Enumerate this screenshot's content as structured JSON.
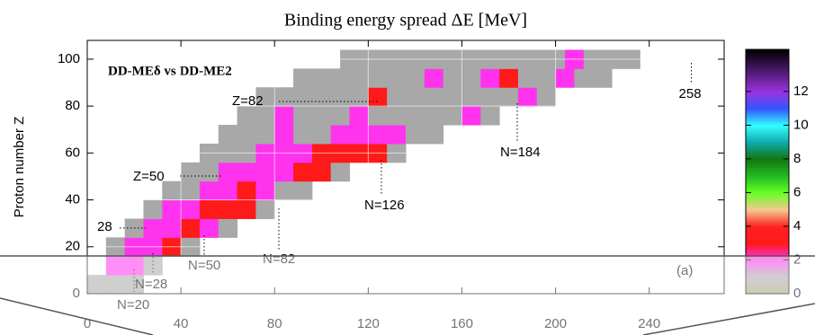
{
  "chart_data": {
    "type": "heatmap",
    "title": "Binding energy spread ΔE [MeV]",
    "y_label": "Proton number Z",
    "subtitle": "DD-MEδ vs DD-ME2",
    "panel_label": "(a)",
    "xlim": [
      0,
      272
    ],
    "xticks": [
      0,
      40,
      80,
      120,
      160,
      200,
      240
    ],
    "ylim": [
      0,
      108
    ],
    "yticks": [
      0,
      20,
      40,
      60,
      80,
      100
    ],
    "clim": [
      0,
      14.5
    ],
    "cticks": [
      0,
      2,
      4,
      6,
      8,
      10,
      12
    ],
    "colorscale": [
      {
        "value": 0,
        "color": "#a39f7a"
      },
      {
        "value": 1,
        "color": "#a8a8a8"
      },
      {
        "value": 2,
        "color": "#ff33ee"
      },
      {
        "value": 3,
        "color": "#ff1a1a"
      },
      {
        "value": 4,
        "color": "#ff2020"
      },
      {
        "value": 5,
        "color": "#f5c890"
      },
      {
        "value": 6,
        "color": "#66ff22"
      },
      {
        "value": 7,
        "color": "#22bb22"
      },
      {
        "value": 8,
        "color": "#117711"
      },
      {
        "value": 9,
        "color": "#11aaaa"
      },
      {
        "value": 10,
        "color": "#33ffff"
      },
      {
        "value": 11,
        "color": "#3355ff"
      },
      {
        "value": 12,
        "color": "#9933dd"
      },
      {
        "value": 14.5,
        "color": "#000000"
      }
    ],
    "rows": [
      {
        "Z": 4,
        "N": [
          4,
          12,
          20
        ],
        "values": [
          1,
          1,
          1
        ]
      },
      {
        "Z": 12,
        "N": [
          12,
          20,
          28
        ],
        "values": [
          2,
          2,
          1
        ]
      },
      {
        "Z": 20,
        "N": [
          12,
          20,
          28,
          36,
          44
        ],
        "values": [
          1,
          2,
          2,
          3,
          1
        ]
      },
      {
        "Z": 28,
        "N": [
          20,
          28,
          36,
          44,
          52,
          60
        ],
        "values": [
          1,
          2,
          2,
          3,
          2,
          1
        ]
      },
      {
        "Z": 36,
        "N": [
          28,
          36,
          44,
          52,
          60,
          68,
          76
        ],
        "values": [
          1,
          2,
          2,
          3,
          3,
          3,
          1
        ]
      },
      {
        "Z": 44,
        "N": [
          36,
          44,
          52,
          60,
          68,
          76,
          84,
          92
        ],
        "values": [
          1,
          1,
          2,
          2,
          3,
          2,
          1,
          1
        ]
      },
      {
        "Z": 52,
        "N": [
          44,
          52,
          60,
          68,
          76,
          84,
          92,
          100,
          108
        ],
        "values": [
          1,
          1,
          2,
          2,
          2,
          2,
          3,
          3,
          1
        ]
      },
      {
        "Z": 60,
        "N": [
          52,
          60,
          68,
          76,
          84,
          92,
          100,
          108,
          116,
          124,
          132
        ],
        "values": [
          1,
          1,
          1,
          2,
          2,
          2,
          3,
          3,
          3,
          3,
          1
        ]
      },
      {
        "Z": 68,
        "N": [
          60,
          68,
          76,
          84,
          92,
          100,
          108,
          116,
          124,
          132,
          140,
          148
        ],
        "values": [
          1,
          1,
          1,
          2,
          1,
          1,
          2,
          2,
          2,
          2,
          1,
          1
        ]
      },
      {
        "Z": 76,
        "N": [
          68,
          76,
          84,
          92,
          100,
          108,
          116,
          124,
          132,
          140,
          148,
          156,
          164,
          172
        ],
        "values": [
          1,
          1,
          2,
          1,
          1,
          1,
          2,
          1,
          1,
          1,
          1,
          1,
          2,
          1
        ]
      },
      {
        "Z": 84,
        "N": [
          76,
          84,
          92,
          100,
          108,
          116,
          124,
          132,
          140,
          148,
          156,
          164,
          172,
          180,
          188,
          196
        ],
        "values": [
          1,
          1,
          1,
          1,
          1,
          1,
          3,
          1,
          1,
          1,
          1,
          1,
          1,
          1,
          2,
          1
        ]
      },
      {
        "Z": 92,
        "N": [
          92,
          100,
          108,
          116,
          124,
          132,
          140,
          148,
          156,
          164,
          172,
          180,
          188,
          196,
          204,
          212,
          220
        ],
        "values": [
          1,
          1,
          1,
          1,
          1,
          1,
          1,
          2,
          1,
          1,
          2,
          3,
          1,
          1,
          2,
          1,
          1
        ]
      },
      {
        "Z": 100,
        "N": [
          112,
          120,
          128,
          136,
          144,
          152,
          160,
          168,
          176,
          184,
          192,
          200,
          208,
          216,
          224,
          232
        ],
        "values": [
          1,
          1,
          1,
          1,
          1,
          1,
          1,
          1,
          1,
          1,
          1,
          1,
          2,
          1,
          1,
          1
        ]
      }
    ],
    "magic_labels": [
      "Z=82",
      "Z=50",
      "N=20",
      "N=28",
      "N=50",
      "N=82",
      "N=126",
      "N=184"
    ],
    "z_magic": [
      28
    ],
    "n_magic": [
      258
    ]
  }
}
